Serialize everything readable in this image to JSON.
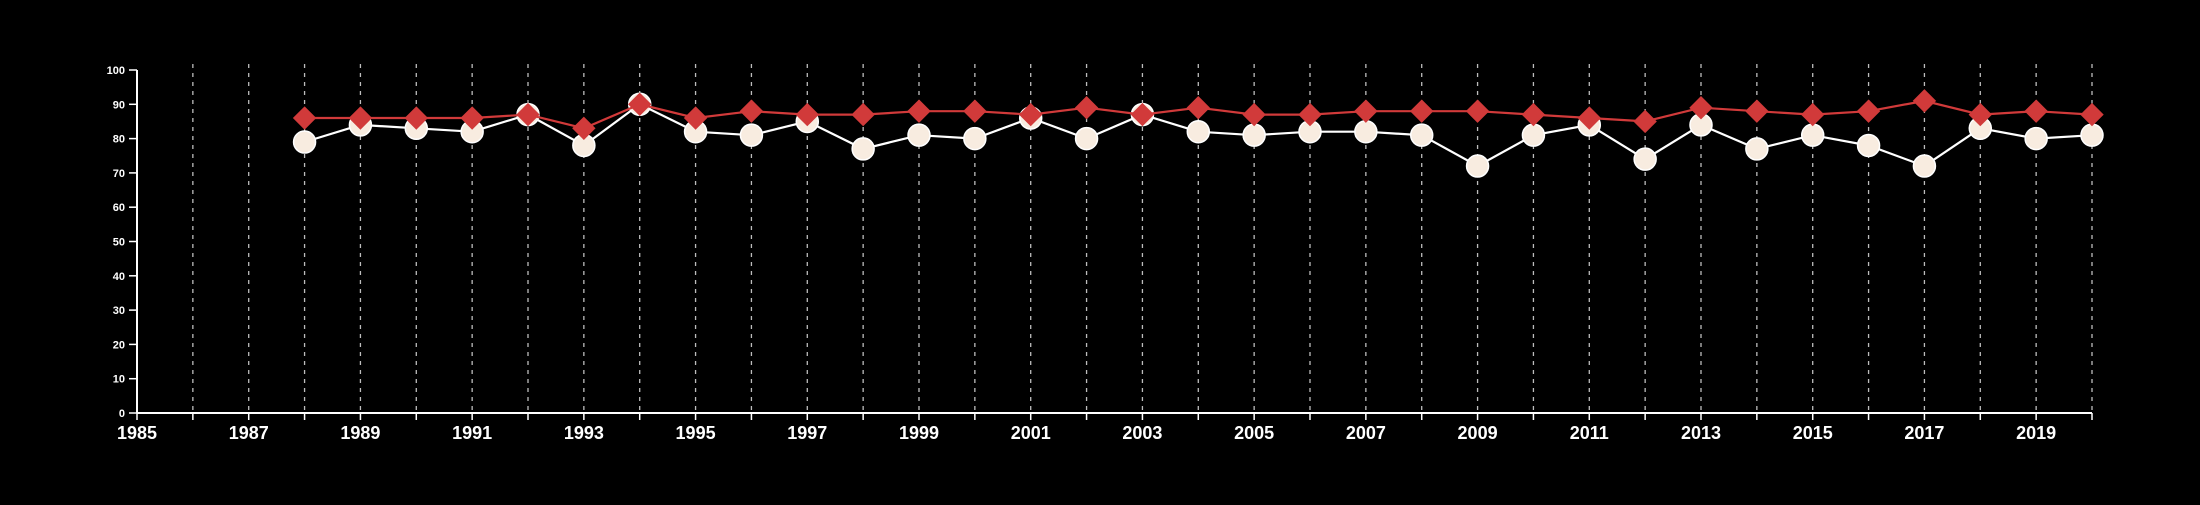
{
  "chart_data": {
    "type": "line",
    "x_ticks": [
      1985,
      1987,
      1989,
      1991,
      1993,
      1995,
      1997,
      1999,
      2001,
      2003,
      2005,
      2007,
      2009,
      2011,
      2013,
      2015,
      2017,
      2019
    ],
    "y_ticks": [
      0,
      10,
      20,
      30,
      40,
      50,
      60,
      70,
      80,
      90,
      100
    ],
    "xlim": [
      1985,
      2020
    ],
    "ylim": [
      0,
      100
    ],
    "grid": "vertical dashed at each year",
    "x": [
      1988,
      1989,
      1990,
      1991,
      1992,
      1993,
      1994,
      1995,
      1996,
      1997,
      1998,
      1999,
      2000,
      2001,
      2002,
      2003,
      2004,
      2005,
      2006,
      2007,
      2008,
      2009,
      2010,
      2011,
      2012,
      2013,
      2014,
      2015,
      2016,
      2017,
      2018,
      2019,
      2020
    ],
    "series": [
      {
        "marker": "circle",
        "color": "#f8ece0",
        "line_color": "#ffffff",
        "values": [
          79,
          84,
          83,
          82,
          87,
          78,
          90,
          82,
          81,
          85,
          77,
          81,
          80,
          86,
          80,
          87,
          82,
          81,
          82,
          82,
          81,
          72,
          81,
          84,
          74,
          84,
          77,
          81,
          78,
          72,
          83,
          80,
          81
        ]
      },
      {
        "marker": "diamond",
        "color": "#d13a3a",
        "line_color": "#d13a3a",
        "values": [
          86,
          86,
          86,
          86,
          87,
          83,
          90,
          86,
          88,
          87,
          87,
          88,
          88,
          87,
          89,
          87,
          89,
          87,
          87,
          88,
          88,
          88,
          87,
          86,
          85,
          89,
          88,
          87,
          88,
          91,
          87,
          88,
          87
        ]
      }
    ]
  }
}
